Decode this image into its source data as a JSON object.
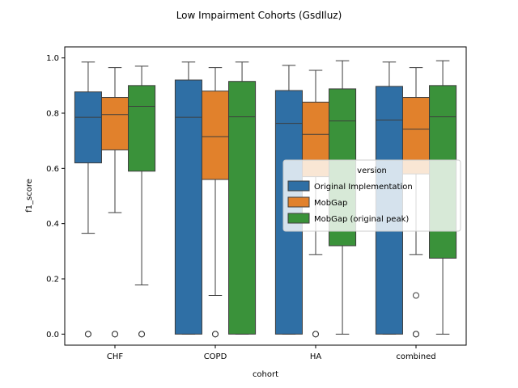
{
  "chart_data": {
    "type": "box",
    "title": "Low Impairment Cohorts (GsdIluz)",
    "xlabel": "cohort",
    "ylabel": "f1_score",
    "ylim": [
      -0.04,
      1.04
    ],
    "yticks": [
      "0.0",
      "0.2",
      "0.4",
      "0.6",
      "0.8",
      "1.0"
    ],
    "categories": [
      "CHF",
      "COPD",
      "HA",
      "combined"
    ],
    "grid": false,
    "legend": {
      "title": "version",
      "placement": "center-right"
    },
    "series": [
      {
        "name": "Original Implementation",
        "color": "#2f6fa5",
        "boxes": [
          {
            "whislo": 0.365,
            "q1": 0.62,
            "med": 0.785,
            "q3": 0.877,
            "whishi": 0.985,
            "fliers": [
              0.0,
              0.0
            ]
          },
          {
            "whislo": 0.0,
            "q1": 0.0,
            "med": 0.785,
            "q3": 0.92,
            "whishi": 0.985,
            "fliers": []
          },
          {
            "whislo": 0.0,
            "q1": 0.0,
            "med": 0.763,
            "q3": 0.882,
            "whishi": 0.973,
            "fliers": []
          },
          {
            "whislo": 0.0,
            "q1": 0.0,
            "med": 0.775,
            "q3": 0.897,
            "whishi": 0.985,
            "fliers": []
          }
        ]
      },
      {
        "name": "MobGap",
        "color": "#e1812c",
        "boxes": [
          {
            "whislo": 0.44,
            "q1": 0.667,
            "med": 0.795,
            "q3": 0.857,
            "whishi": 0.965,
            "fliers": [
              0.0,
              0.0
            ]
          },
          {
            "whislo": 0.14,
            "q1": 0.56,
            "med": 0.715,
            "q3": 0.88,
            "whishi": 0.965,
            "fliers": [
              0.0,
              0.0
            ]
          },
          {
            "whislo": 0.288,
            "q1": 0.57,
            "med": 0.723,
            "q3": 0.84,
            "whishi": 0.955,
            "fliers": [
              0.0,
              0.0
            ]
          },
          {
            "whislo": 0.288,
            "q1": 0.58,
            "med": 0.742,
            "q3": 0.857,
            "whishi": 0.965,
            "fliers": [
              0.14,
              0.0,
              0.0
            ]
          }
        ]
      },
      {
        "name": "MobGap (original peak)",
        "color": "#3a923a",
        "boxes": [
          {
            "whislo": 0.178,
            "q1": 0.59,
            "med": 0.825,
            "q3": 0.9,
            "whishi": 0.97,
            "fliers": [
              0.0,
              0.0
            ]
          },
          {
            "whislo": 0.0,
            "q1": 0.0,
            "med": 0.787,
            "q3": 0.915,
            "whishi": 0.985,
            "fliers": []
          },
          {
            "whislo": 0.0,
            "q1": 0.32,
            "med": 0.772,
            "q3": 0.888,
            "whishi": 0.99,
            "fliers": []
          },
          {
            "whislo": 0.0,
            "q1": 0.275,
            "med": 0.787,
            "q3": 0.9,
            "whishi": 0.99,
            "fliers": []
          }
        ]
      }
    ]
  }
}
